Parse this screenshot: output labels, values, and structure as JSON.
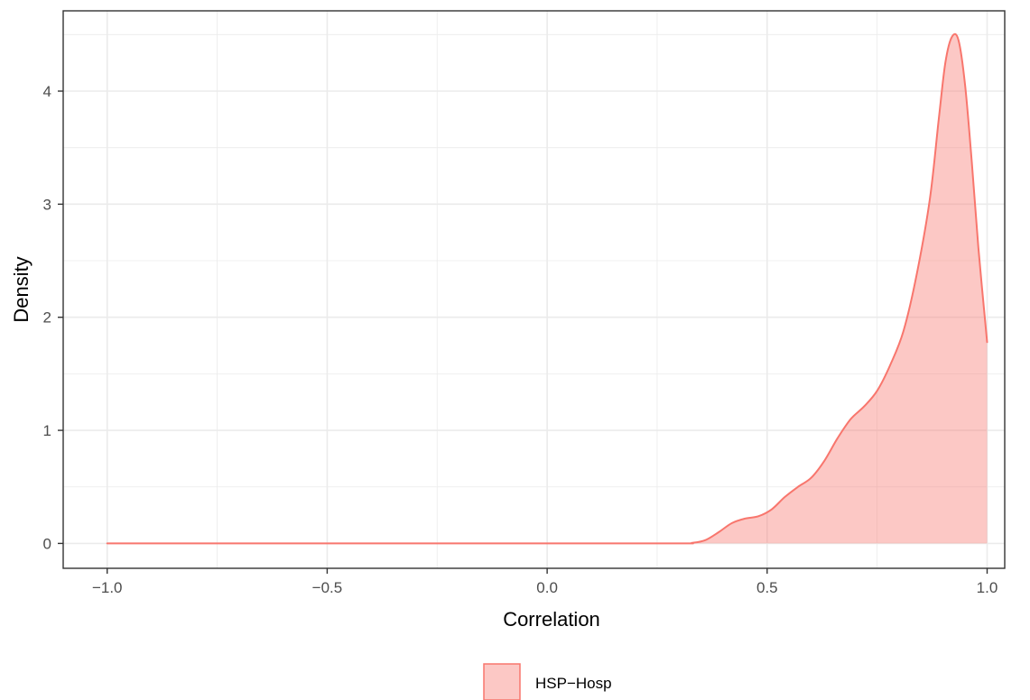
{
  "chart_data": {
    "type": "area",
    "title": "",
    "xlabel": "Correlation",
    "ylabel": "Density",
    "xlim": [
      -1.1,
      1.04
    ],
    "ylim": [
      -0.22,
      4.71
    ],
    "x_ticks": [
      -1.0,
      -0.5,
      0.0,
      0.5,
      1.0
    ],
    "x_tick_labels": [
      "−1.0",
      "−0.5",
      "0.0",
      "0.5",
      "1.0"
    ],
    "y_ticks": [
      0,
      1,
      2,
      3,
      4
    ],
    "y_tick_labels": [
      "0",
      "1",
      "2",
      "3",
      "4"
    ],
    "grid": true,
    "legend_position": "bottom",
    "series": [
      {
        "name": "HSP−Hosp",
        "fill_color": "#F8766D",
        "fill_opacity": 0.4,
        "line_color": "#F8766D",
        "points": [
          [
            -1.0,
            0.0
          ],
          [
            -0.5,
            0.0
          ],
          [
            0.0,
            0.0
          ],
          [
            0.3,
            0.0
          ],
          [
            0.33,
            0.005
          ],
          [
            0.36,
            0.03
          ],
          [
            0.39,
            0.1
          ],
          [
            0.42,
            0.18
          ],
          [
            0.45,
            0.22
          ],
          [
            0.48,
            0.24
          ],
          [
            0.51,
            0.3
          ],
          [
            0.54,
            0.41
          ],
          [
            0.57,
            0.5
          ],
          [
            0.6,
            0.58
          ],
          [
            0.63,
            0.73
          ],
          [
            0.66,
            0.93
          ],
          [
            0.69,
            1.1
          ],
          [
            0.72,
            1.21
          ],
          [
            0.75,
            1.35
          ],
          [
            0.78,
            1.58
          ],
          [
            0.81,
            1.88
          ],
          [
            0.84,
            2.38
          ],
          [
            0.87,
            3.05
          ],
          [
            0.89,
            3.75
          ],
          [
            0.905,
            4.25
          ],
          [
            0.92,
            4.48
          ],
          [
            0.935,
            4.45
          ],
          [
            0.95,
            4.05
          ],
          [
            0.965,
            3.38
          ],
          [
            0.98,
            2.62
          ],
          [
            1.0,
            1.78
          ]
        ]
      }
    ]
  }
}
